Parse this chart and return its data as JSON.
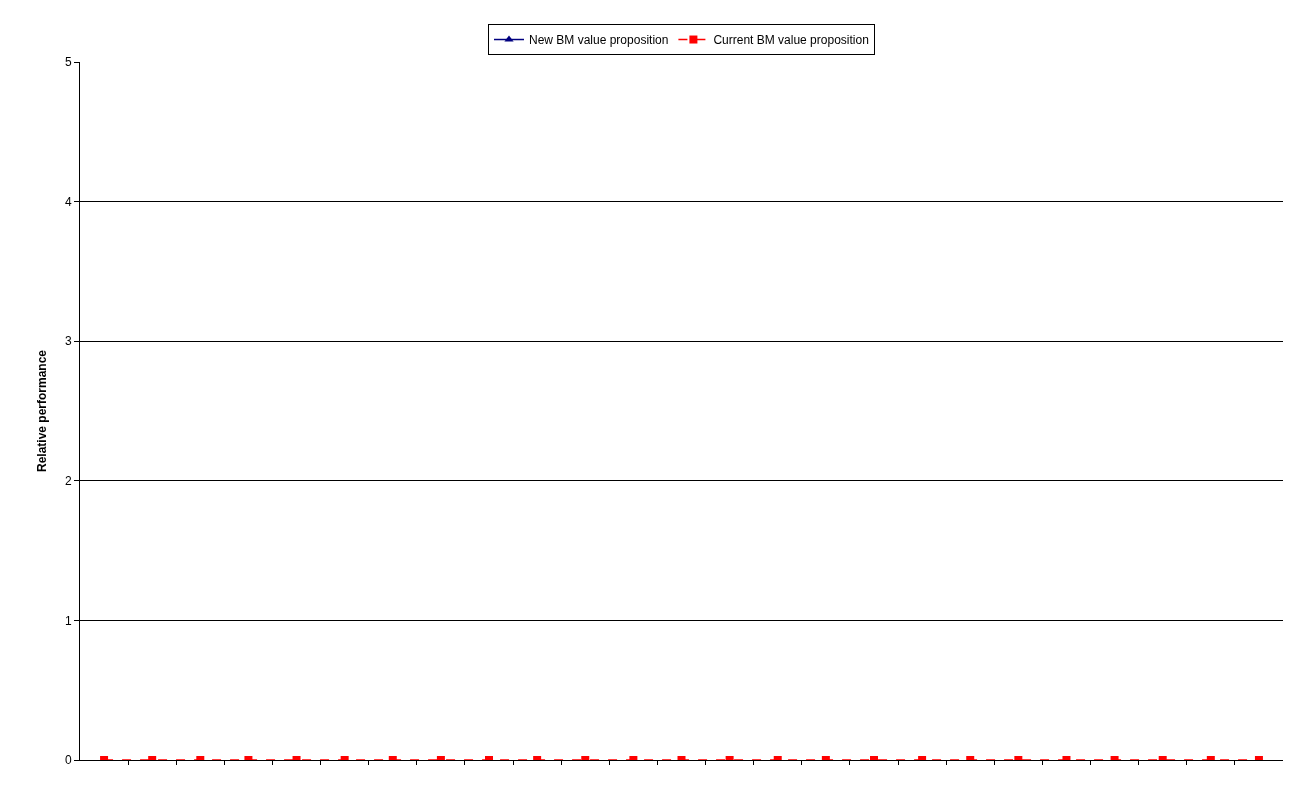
{
  "chart_data": {
    "type": "line",
    "ylabel": "Relative performance",
    "categories": [
      null,
      null,
      null,
      null,
      null,
      null,
      null,
      null,
      null,
      null,
      null,
      null,
      null,
      null,
      null,
      null,
      null,
      null,
      null,
      null,
      null,
      null,
      null,
      null,
      null
    ],
    "ylim": [
      0,
      5
    ],
    "yticks": [
      0,
      1,
      2,
      3,
      4,
      5
    ],
    "grid": "y",
    "legend": "top",
    "series": [
      {
        "name": "New BM value proposition",
        "color": "#000080",
        "marker": "triangle",
        "line_style": "solid",
        "values": [
          null,
          null,
          null,
          null,
          null,
          null,
          null,
          null,
          null,
          null,
          null,
          null,
          null,
          null,
          null,
          null,
          null,
          null,
          null,
          null,
          null,
          null,
          null,
          null,
          null
        ]
      },
      {
        "name": "Current BM value proposition",
        "color": "#ff0000",
        "marker": "square",
        "line_style": "dashed",
        "values": [
          0,
          0,
          0,
          0,
          0,
          0,
          0,
          0,
          0,
          0,
          0,
          0,
          0,
          0,
          0,
          0,
          0,
          0,
          0,
          0,
          0,
          0,
          0,
          0,
          0
        ]
      }
    ]
  }
}
